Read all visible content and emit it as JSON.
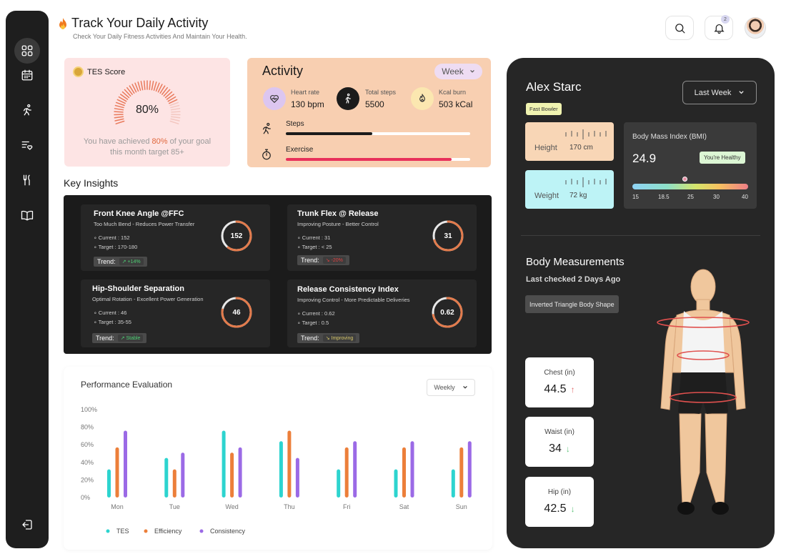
{
  "header": {
    "title": "Track Your Daily Activity",
    "subtitle": "Check Your Daily Fitness Activities And Maintain Your Health.",
    "notification_count": "2"
  },
  "sidebar": {
    "items": [
      {
        "name": "dashboard",
        "active": true
      },
      {
        "name": "calendar"
      },
      {
        "name": "activity"
      },
      {
        "name": "health"
      },
      {
        "name": "nutrition"
      },
      {
        "name": "library"
      }
    ],
    "logout": "logout"
  },
  "tes": {
    "label": "TES Score",
    "value": "80%",
    "progress": 0.8,
    "text_pre": "You have achieved ",
    "text_highlight": "80%",
    "text_post": " of your goal this month target 85+"
  },
  "activity": {
    "title": "Activity",
    "period": "Week",
    "stats": [
      {
        "label": "Heart rate",
        "value": "130 bpm",
        "icon": "heart-pulse-icon"
      },
      {
        "label": "Total steps",
        "value": "5500",
        "icon": "walking-icon"
      },
      {
        "label": "Kcal burn",
        "value": "503 kCal",
        "icon": "flame-icon"
      }
    ],
    "rows": [
      {
        "label": "Steps",
        "progress": 0.47,
        "color": "#1b1b1b"
      },
      {
        "label": "Exercise",
        "progress": 0.9,
        "color": "#e8305a"
      }
    ]
  },
  "insights": {
    "title": "Key Insights",
    "trend_label": "Trend:",
    "items": [
      {
        "title": "Front Knee Angle @FFC",
        "subtitle": "Too Much Bend - Reduces Power Transfer",
        "current": "Current : 152",
        "target": "Target : 170-180",
        "value": "152",
        "trend": "↗ +14%",
        "trend_color": "#4ccf73",
        "ring": 0.6
      },
      {
        "title": "Trunk Flex @ Release",
        "subtitle": "Improving Posture - Better Control",
        "current": "Current : 31",
        "target": "Target : < 25",
        "value": "31",
        "trend": "↘ -20%",
        "trend_color": "#e04040",
        "ring": 0.7
      },
      {
        "title": "Hip-Shoulder Separation",
        "subtitle": "Optimal Rotation - Excellent Power Generation",
        "current": "Current : 46",
        "target": "Target : 35-55",
        "value": "46",
        "trend": "↗ Stable",
        "trend_color": "#4ccf73",
        "ring": 0.78
      },
      {
        "title": "Release Consistency Index",
        "subtitle": "Improving Control - More Predictable Deliveries",
        "current": "Current : 0.62",
        "target": "Target : 0.5",
        "value": "0.62",
        "trend": "↘ Improving",
        "trend_color": "#d8c86a",
        "ring": 0.72
      }
    ]
  },
  "performance": {
    "title": "Performance Evaluation",
    "period": "Weekly"
  },
  "chart_data": {
    "type": "bar",
    "title": "Performance Evaluation",
    "categories": [
      "Mon",
      "Tue",
      "Wed",
      "Thu",
      "Fri",
      "Sat",
      "Sun"
    ],
    "y_ticks": [
      "0%",
      "20%",
      "40%",
      "60%",
      "80%",
      "100%"
    ],
    "ylim": [
      0,
      100
    ],
    "series": [
      {
        "name": "TES",
        "color": "#2dd4cf",
        "values": [
          32,
          45,
          76,
          64,
          32,
          32,
          32
        ]
      },
      {
        "name": "Efficiency",
        "color": "#ec7f3a",
        "values": [
          57,
          32,
          51,
          76,
          57,
          57,
          57
        ]
      },
      {
        "name": "Consistency",
        "color": "#9b6ae6",
        "values": [
          76,
          51,
          57,
          45,
          64,
          64,
          64
        ]
      }
    ]
  },
  "profile": {
    "name": "Alex Starc",
    "role": "Fast Bowler",
    "period": "Last Week",
    "height_label": "Height",
    "height_value": "170 cm",
    "weight_label": "Weight",
    "weight_value": "72 kg",
    "bmi_label": "Body Mass Index (BMI)",
    "bmi_value": "24.9",
    "bmi_status": "You're Healthy",
    "bmi_ticks": [
      "15",
      "18.5",
      "25",
      "30",
      "40"
    ],
    "colors": {
      "height_card": "#f8d6b6",
      "weight_card": "#bdf3f6"
    }
  },
  "measurements": {
    "title": "Body Measurements",
    "last_checked": "Last checked 2 Days Ago",
    "shape": "Inverted Triangle Body Shape",
    "items": [
      {
        "label": "Chest (in)",
        "value": "44.5",
        "arrow": "↑",
        "arrow_color": "#e26a6a"
      },
      {
        "label": "Waist (in)",
        "value": "34",
        "arrow": "↓",
        "arrow_color": "#5ec27a"
      },
      {
        "label": "Hip (in)",
        "value": "42.5",
        "arrow": "↓",
        "arrow_color": "#5ec27a"
      }
    ]
  }
}
